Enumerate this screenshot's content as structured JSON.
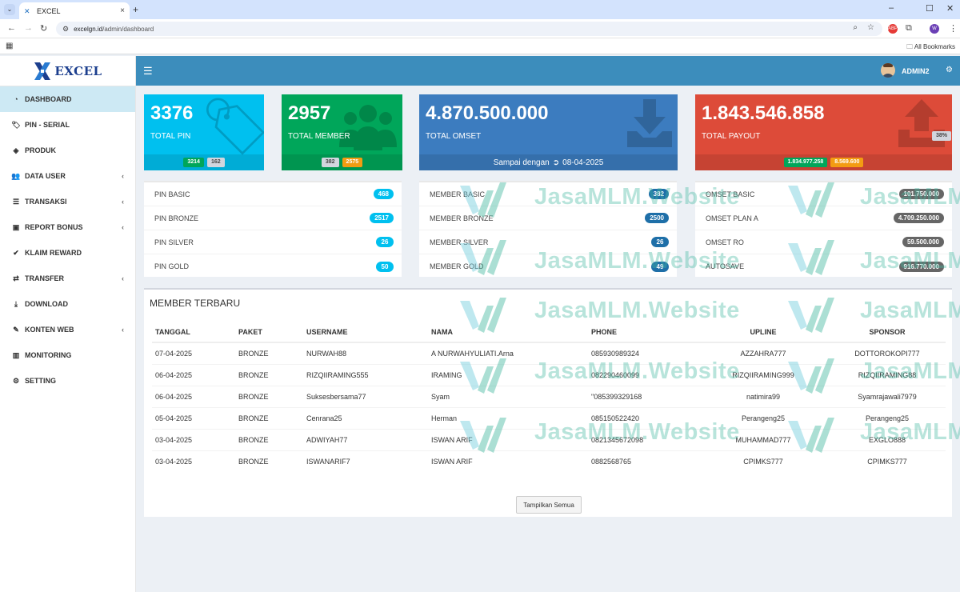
{
  "browser": {
    "tab_title": "EXCEL",
    "url_host": "excelgn.id",
    "url_path": "/admin/dashboard",
    "bookmarks_label": "All Bookmarks",
    "profile_initial": "W"
  },
  "logo": {
    "text": "EXCEL"
  },
  "sidebar": {
    "items": [
      {
        "label": "DASHBOARD",
        "icon": "dashboard-icon",
        "active": true
      },
      {
        "label": "PIN - SERIAL",
        "icon": "tag-icon"
      },
      {
        "label": "PRODUK",
        "icon": "cube-icon"
      },
      {
        "label": "DATA USER",
        "icon": "users-icon",
        "expandable": true
      },
      {
        "label": "TRANSAKSI",
        "icon": "list-icon",
        "expandable": true
      },
      {
        "label": "REPORT BONUS",
        "icon": "money-icon",
        "expandable": true
      },
      {
        "label": "KLAIM REWARD",
        "icon": "check-icon"
      },
      {
        "label": "TRANSFER",
        "icon": "exchange-icon",
        "expandable": true
      },
      {
        "label": "DOWNLOAD",
        "icon": "download-icon"
      },
      {
        "label": "KONTEN WEB",
        "icon": "edit-icon",
        "expandable": true
      },
      {
        "label": "MONITORING",
        "icon": "bar-chart-icon"
      },
      {
        "label": "SETTING",
        "icon": "cogs-icon"
      }
    ]
  },
  "header": {
    "username": "ADMIN2"
  },
  "stats": {
    "pin": {
      "value": "3376",
      "label": "TOTAL PIN",
      "badge1": "3214",
      "badge2": "162",
      "color": "#00c0ef"
    },
    "member": {
      "value": "2957",
      "label": "TOTAL MEMBER",
      "badge1": "382",
      "badge2": "2575",
      "color": "#00a65a"
    },
    "omset": {
      "value": "4.870.500.000",
      "label": "TOTAL OMSET",
      "footer": "Sampai dengan",
      "date": "08-04-2025",
      "color": "#3c7cbf"
    },
    "payout": {
      "value": "1.843.546.858",
      "label": "TOTAL PAYOUT",
      "percent": "38%",
      "badge1": "1.834.977.258",
      "badge2": "8.569.600",
      "color": "#dd4b39"
    }
  },
  "pin_list": [
    {
      "label": "PIN BASIC",
      "value": "468"
    },
    {
      "label": "PIN BRONZE",
      "value": "2517"
    },
    {
      "label": "PIN SILVER",
      "value": "26"
    },
    {
      "label": "PIN GOLD",
      "value": "50"
    }
  ],
  "member_list": [
    {
      "label": "MEMBER BASIC",
      "value": "382"
    },
    {
      "label": "MEMBER BRONZE",
      "value": "2500"
    },
    {
      "label": "MEMBER SILVER",
      "value": "26"
    },
    {
      "label": "MEMBER GOLD",
      "value": "49"
    }
  ],
  "omset_list": [
    {
      "label": "OMSET BASIC",
      "value": "101.750.000"
    },
    {
      "label": "OMSET PLAN A",
      "value": "4.709.250.000"
    },
    {
      "label": "OMSET RO",
      "value": "59.500.000"
    },
    {
      "label": "AUTOSAVE",
      "value": "916.770.000"
    }
  ],
  "members": {
    "title": "MEMBER TERBARU",
    "columns": [
      "TANGGAL",
      "PAKET",
      "USERNAME",
      "NAMA",
      "PHONE",
      "UPLINE",
      "SPONSOR"
    ],
    "rows": [
      [
        "07-04-2025",
        "BRONZE",
        "NURWAH88",
        "A NURWAHYULIATI.Arna",
        "085930989324",
        "AZZAHRA777",
        "DOTTOROKOPI777"
      ],
      [
        "06-04-2025",
        "BRONZE",
        "RIZQIIRAMING555",
        "IRAMING",
        "082290460099",
        "RIZQIIRAMING999",
        "RIZQIIRAMING88"
      ],
      [
        "06-04-2025",
        "BRONZE",
        "Suksesbersama77",
        "Syam",
        "\"085399329168",
        "natimira99",
        "Syamrajawali7979"
      ],
      [
        "05-04-2025",
        "BRONZE",
        "Cenrana25",
        "Herman",
        "085150522420",
        "Perangeng25",
        "Perangeng25"
      ],
      [
        "03-04-2025",
        "BRONZE",
        "ADWIYAH77",
        "ISWAN ARIF",
        "0821345672098",
        "MUHAMMAD777",
        "EXGLO888"
      ],
      [
        "03-04-2025",
        "BRONZE",
        "ISWANARIF7",
        "ISWAN ARIF",
        "0882568765",
        "CPIMKS777",
        "CPIMKS777"
      ]
    ],
    "show_all": "Tampilkan Semua"
  },
  "watermark": "JasaMLM.Website"
}
